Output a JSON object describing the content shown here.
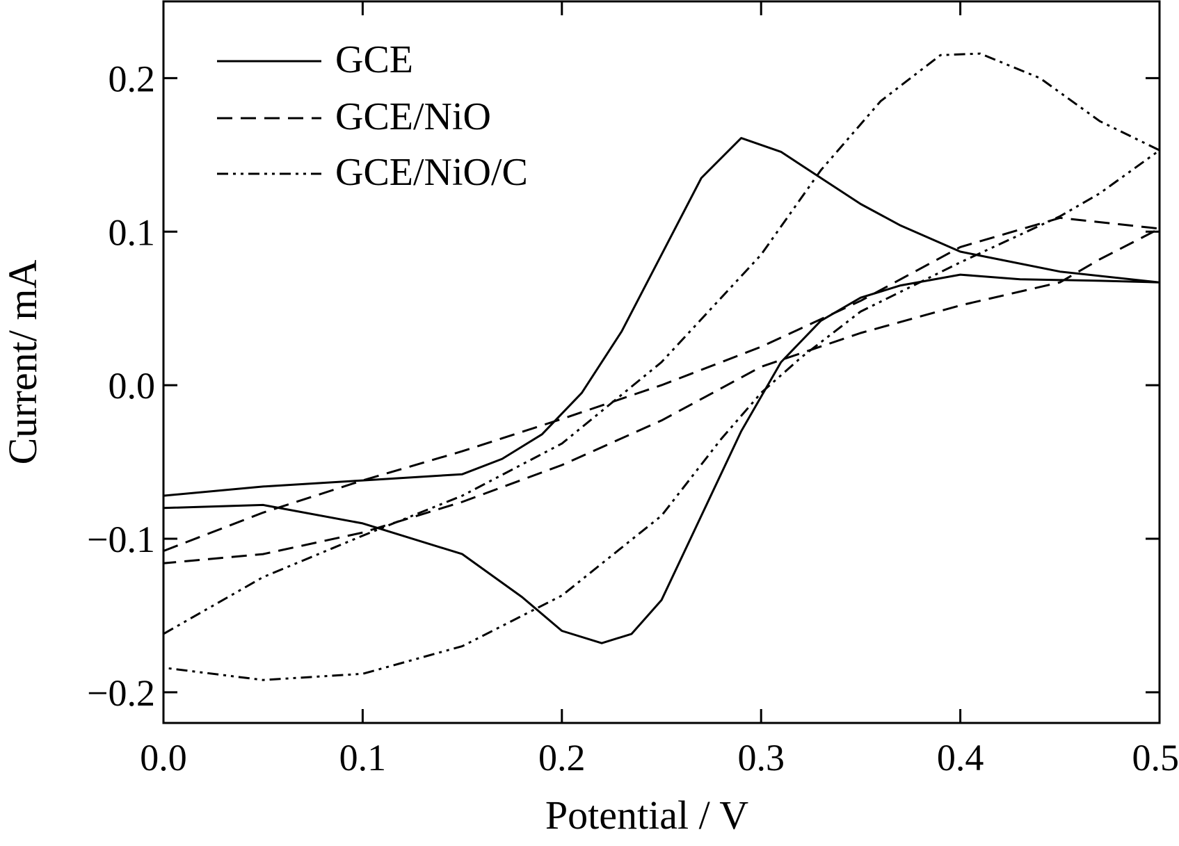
{
  "chart_data": {
    "type": "line",
    "title": "",
    "xlabel": "Potential / V",
    "ylabel": "Current/  mA",
    "xlim": [
      0.0,
      0.5
    ],
    "ylim": [
      -0.22,
      0.25
    ],
    "x_ticks": [
      0.0,
      0.1,
      0.2,
      0.3,
      0.4,
      0.5
    ],
    "x_tick_labels": [
      "0.0",
      "0.1",
      "0.2",
      "0.3",
      "0.4",
      "0.5"
    ],
    "y_ticks": [
      -0.2,
      -0.1,
      0.0,
      0.1,
      0.2
    ],
    "y_tick_labels": [
      "−0.2",
      "−0.1",
      "0.0",
      "0.1",
      "0.2"
    ],
    "grid": false,
    "legend_position": "top-left",
    "series": [
      {
        "name": "GCE",
        "line_style": "solid",
        "points": [
          [
            0.0,
            -0.072
          ],
          [
            0.05,
            -0.066
          ],
          [
            0.1,
            -0.062
          ],
          [
            0.15,
            -0.058
          ],
          [
            0.17,
            -0.048
          ],
          [
            0.19,
            -0.032
          ],
          [
            0.21,
            -0.005
          ],
          [
            0.23,
            0.035
          ],
          [
            0.25,
            0.085
          ],
          [
            0.27,
            0.135
          ],
          [
            0.29,
            0.161
          ],
          [
            0.31,
            0.152
          ],
          [
            0.33,
            0.135
          ],
          [
            0.35,
            0.118
          ],
          [
            0.37,
            0.104
          ],
          [
            0.4,
            0.087
          ],
          [
            0.45,
            0.074
          ],
          [
            0.5,
            0.067
          ],
          [
            0.47,
            0.068
          ],
          [
            0.43,
            0.069
          ],
          [
            0.4,
            0.072
          ],
          [
            0.37,
            0.065
          ],
          [
            0.35,
            0.057
          ],
          [
            0.33,
            0.042
          ],
          [
            0.31,
            0.015
          ],
          [
            0.29,
            -0.03
          ],
          [
            0.27,
            -0.085
          ],
          [
            0.25,
            -0.14
          ],
          [
            0.235,
            -0.162
          ],
          [
            0.22,
            -0.168
          ],
          [
            0.2,
            -0.16
          ],
          [
            0.18,
            -0.138
          ],
          [
            0.15,
            -0.11
          ],
          [
            0.1,
            -0.09
          ],
          [
            0.05,
            -0.078
          ],
          [
            0.0,
            -0.08
          ]
        ]
      },
      {
        "name": "GCE/NiO",
        "line_style": "dashed",
        "points": [
          [
            0.0,
            -0.108
          ],
          [
            0.05,
            -0.083
          ],
          [
            0.1,
            -0.062
          ],
          [
            0.15,
            -0.043
          ],
          [
            0.2,
            -0.022
          ],
          [
            0.25,
            0.0
          ],
          [
            0.3,
            0.025
          ],
          [
            0.35,
            0.055
          ],
          [
            0.4,
            0.09
          ],
          [
            0.45,
            0.109
          ],
          [
            0.5,
            0.102
          ],
          [
            0.47,
            0.082
          ],
          [
            0.45,
            0.067
          ],
          [
            0.4,
            0.052
          ],
          [
            0.35,
            0.034
          ],
          [
            0.3,
            0.012
          ],
          [
            0.25,
            -0.023
          ],
          [
            0.2,
            -0.052
          ],
          [
            0.15,
            -0.076
          ],
          [
            0.1,
            -0.096
          ],
          [
            0.05,
            -0.11
          ],
          [
            0.0,
            -0.116
          ]
        ]
      },
      {
        "name": "GCE/NiO/C",
        "line_style": "dash-dot-dot",
        "points": [
          [
            0.0,
            -0.162
          ],
          [
            0.05,
            -0.125
          ],
          [
            0.1,
            -0.098
          ],
          [
            0.15,
            -0.072
          ],
          [
            0.2,
            -0.038
          ],
          [
            0.25,
            0.015
          ],
          [
            0.3,
            0.085
          ],
          [
            0.33,
            0.14
          ],
          [
            0.36,
            0.185
          ],
          [
            0.39,
            0.215
          ],
          [
            0.41,
            0.216
          ],
          [
            0.44,
            0.2
          ],
          [
            0.47,
            0.172
          ],
          [
            0.5,
            0.153
          ],
          [
            0.47,
            0.125
          ],
          [
            0.45,
            0.11
          ],
          [
            0.4,
            0.08
          ],
          [
            0.35,
            0.048
          ],
          [
            0.32,
            0.018
          ],
          [
            0.3,
            -0.005
          ],
          [
            0.28,
            -0.035
          ],
          [
            0.25,
            -0.085
          ],
          [
            0.2,
            -0.137
          ],
          [
            0.15,
            -0.17
          ],
          [
            0.1,
            -0.188
          ],
          [
            0.05,
            -0.192
          ],
          [
            0.0,
            -0.184
          ]
        ]
      }
    ]
  }
}
